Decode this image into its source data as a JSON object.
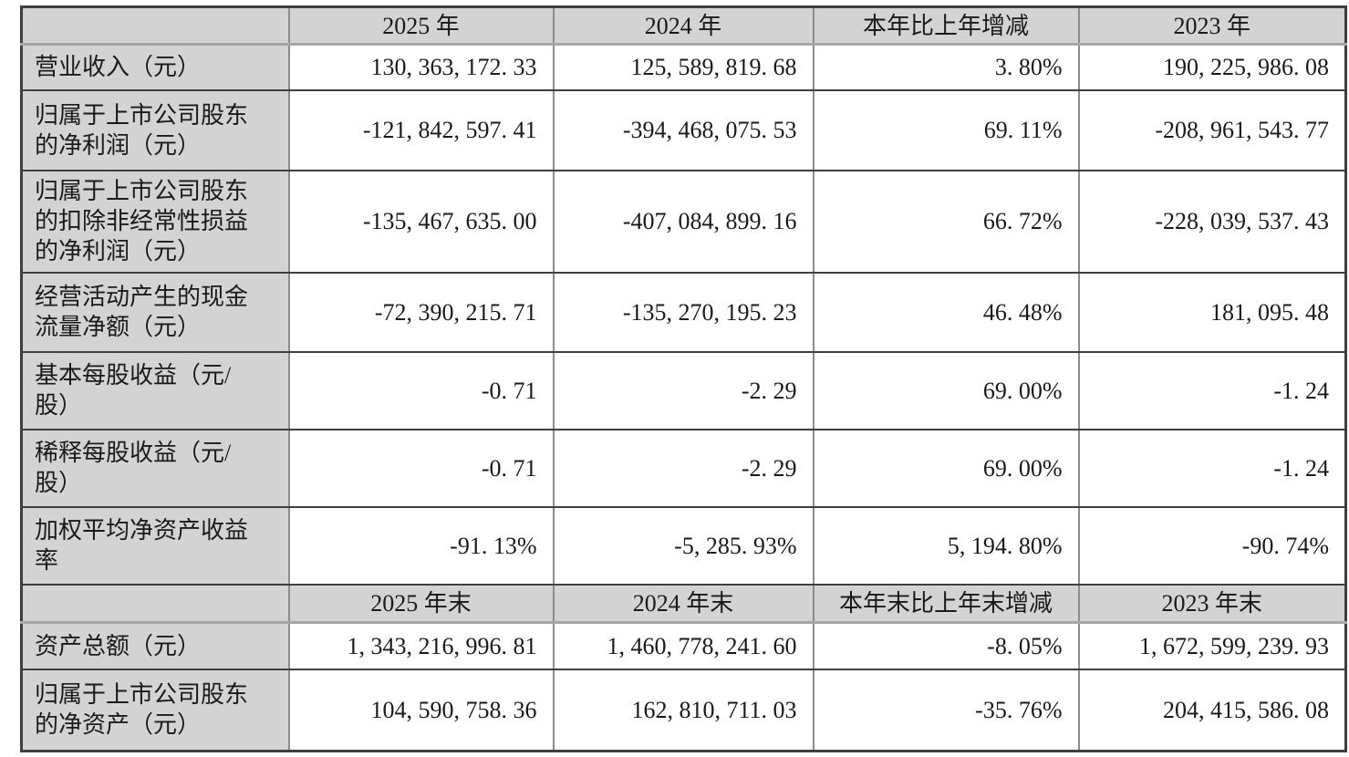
{
  "table": {
    "title": "financial-key-indicators",
    "sections": [
      {
        "header": {
          "label": "",
          "cols": [
            "2025 年",
            "2024 年",
            "本年比上年增减",
            "2023 年"
          ]
        },
        "rows": [
          {
            "label": "营业收入（元）",
            "cells": [
              "130, 363, 172. 33",
              "125, 589, 819. 68",
              "3. 80%",
              "190, 225, 986. 08"
            ]
          },
          {
            "label": "归属于上市公司股东的净利润（元）",
            "cells": [
              "-121, 842, 597. 41",
              "-394, 468, 075. 53",
              "69. 11%",
              "-208, 961, 543. 77"
            ]
          },
          {
            "label": "归属于上市公司股东的扣除非经常性损益的净利润（元）",
            "cells": [
              "-135, 467, 635. 00",
              "-407, 084, 899. 16",
              "66. 72%",
              "-228, 039, 537. 43"
            ]
          },
          {
            "label": "经营活动产生的现金流量净额（元）",
            "cells": [
              "-72, 390, 215. 71",
              "-135, 270, 195. 23",
              "46. 48%",
              "181, 095. 48"
            ]
          },
          {
            "label": "基本每股收益（元/股）",
            "cells": [
              "-0. 71",
              "-2. 29",
              "69. 00%",
              "-1. 24"
            ]
          },
          {
            "label": "稀释每股收益（元/股）",
            "cells": [
              "-0. 71",
              "-2. 29",
              "69. 00%",
              "-1. 24"
            ]
          },
          {
            "label": "加权平均净资产收益率",
            "cells": [
              "-91. 13%",
              "-5, 285. 93%",
              "5, 194. 80%",
              "-90. 74%"
            ]
          }
        ]
      },
      {
        "header": {
          "label": "",
          "cols": [
            "2025 年末",
            "2024 年末",
            "本年末比上年末增减",
            "2023 年末"
          ]
        },
        "rows": [
          {
            "label": "资产总额（元）",
            "cells": [
              "1, 343, 216, 996. 81",
              "1, 460, 778, 241. 60",
              "-8. 05%",
              "1, 672, 599, 239. 93"
            ]
          },
          {
            "label": "归属于上市公司股东的净资产（元）",
            "cells": [
              "104, 590, 758. 36",
              "162, 810, 711. 03",
              "-35. 76%",
              "204, 415, 586. 08"
            ]
          }
        ]
      }
    ]
  },
  "colors": {
    "cell_shading_gray": "#d3d3d3",
    "border_dark": "#3f3f3f",
    "border_vertical_gray": "#8c8c8c",
    "header_underline_gray": "#a6a6a6",
    "text": "#1a1a1a",
    "background": "#ffffff"
  }
}
